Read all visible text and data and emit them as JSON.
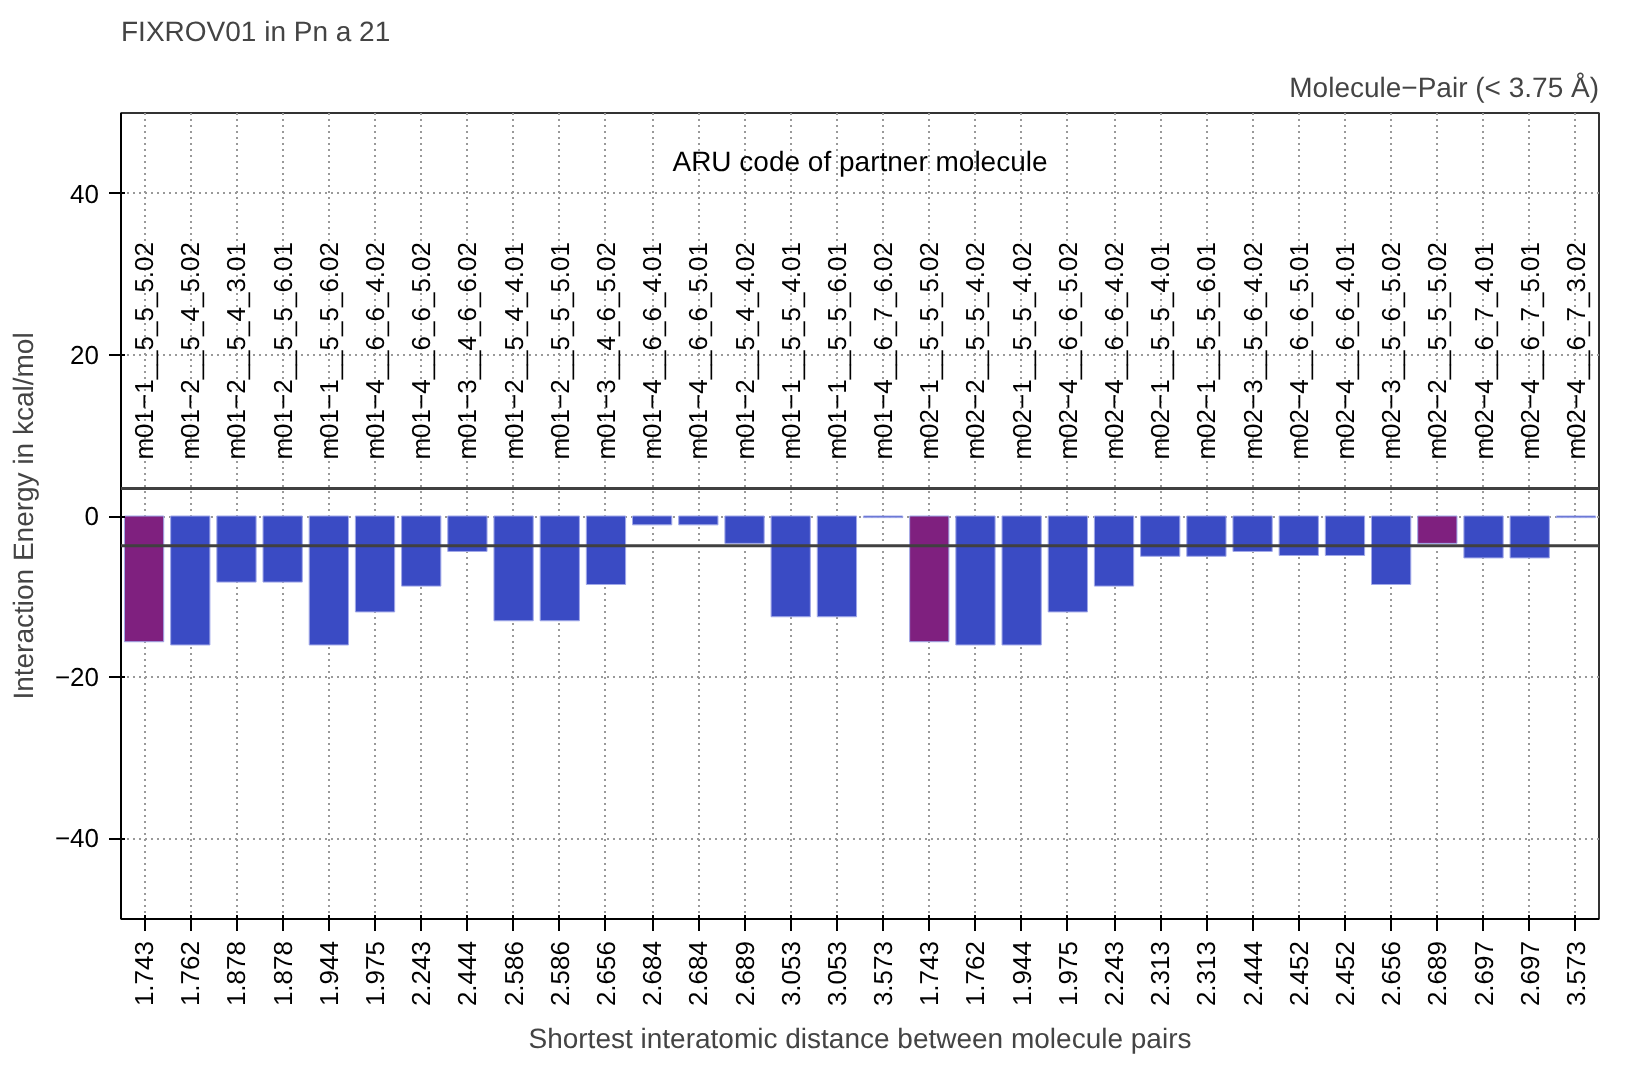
{
  "chart_data": {
    "type": "bar",
    "title": "FIXROV01 in Pn a 21",
    "subtitle": "Molecule−Pair (< 3.75 Å)",
    "xlabel": "Shortest interatomic distance between molecule pairs",
    "ylabel": "Interaction Energy in kcal/mol",
    "x2label": "ARU code of partner molecule",
    "categories": [
      "1.743",
      "1.762",
      "1.878",
      "1.878",
      "1.944",
      "1.975",
      "2.243",
      "2.444",
      "2.586",
      "2.586",
      "2.656",
      "2.684",
      "2.684",
      "2.689",
      "3.053",
      "3.053",
      "3.573",
      "1.743",
      "1.762",
      "1.944",
      "1.975",
      "2.243",
      "2.313",
      "2.313",
      "2.444",
      "2.452",
      "2.452",
      "2.656",
      "2.689",
      "2.697",
      "2.697",
      "3.573"
    ],
    "values": [
      -15.6,
      -16.0,
      -8.2,
      -8.2,
      -16.0,
      -11.9,
      -8.7,
      -4.4,
      -13.0,
      -13.0,
      -8.5,
      -1.1,
      -1.1,
      -3.4,
      -12.5,
      -12.5,
      -0.2,
      -15.6,
      -16.0,
      -16.0,
      -11.9,
      -8.7,
      -5.0,
      -5.0,
      -4.4,
      -4.9,
      -4.9,
      -8.5,
      -3.4,
      -5.2,
      -5.2,
      -0.2
    ],
    "colors": [
      "#7f207f",
      "#3a4bc4",
      "#3a4bc4",
      "#3a4bc4",
      "#3a4bc4",
      "#3a4bc4",
      "#3a4bc4",
      "#3a4bc4",
      "#3a4bc4",
      "#3a4bc4",
      "#3a4bc4",
      "#3a4bc4",
      "#3a4bc4",
      "#3a4bc4",
      "#3a4bc4",
      "#3a4bc4",
      "#3a4bc4",
      "#7f207f",
      "#3a4bc4",
      "#3a4bc4",
      "#3a4bc4",
      "#3a4bc4",
      "#3a4bc4",
      "#3a4bc4",
      "#3a4bc4",
      "#3a4bc4",
      "#3a4bc4",
      "#3a4bc4",
      "#7f207f",
      "#3a4bc4",
      "#3a4bc4",
      "#3a4bc4"
    ],
    "annotations": [
      "m01−1__5_5_5.02",
      "m01−2__5_4_5.02",
      "m01−2__5_4_3.01",
      "m01−2__5_5_6.01",
      "m01−1__5_5_6.02",
      "m01−4__6_6_4.02",
      "m01−4__6_6_5.02",
      "m01−3__4_6_6.02",
      "m01−2__5_4_4.01",
      "m01−2__5_5_5.01",
      "m01−3__4_6_5.02",
      "m01−4__6_6_4.01",
      "m01−4__6_6_5.01",
      "m01−2__5_4_4.02",
      "m01−1__5_5_4.01",
      "m01−1__5_5_6.01",
      "m01−4__6_7_6.02",
      "m02−1__5_5_5.02",
      "m02−2__5_5_4.02",
      "m02−1__5_5_4.02",
      "m02−4__6_6_5.02",
      "m02−4__6_6_4.02",
      "m02−1__5_5_4.01",
      "m02−1__5_5_6.01",
      "m02−3__5_6_4.02",
      "m02−4__6_6_5.01",
      "m02−4__6_6_4.01",
      "m02−3__5_6_5.02",
      "m02−2__5_5_5.02",
      "m02−4__6_7_4.01",
      "m02−4__6_7_5.01",
      "m02−4__6_7_3.02"
    ],
    "ylim": [
      -50,
      50
    ],
    "yticks": [
      -40,
      -20,
      0,
      20,
      40
    ],
    "grid": true,
    "ref_lines": [
      {
        "axis": "y",
        "value": 3.4,
        "label": null,
        "color": "#404040"
      },
      {
        "axis": "y",
        "value": -3.7,
        "label": null,
        "color": "#404040"
      }
    ]
  }
}
